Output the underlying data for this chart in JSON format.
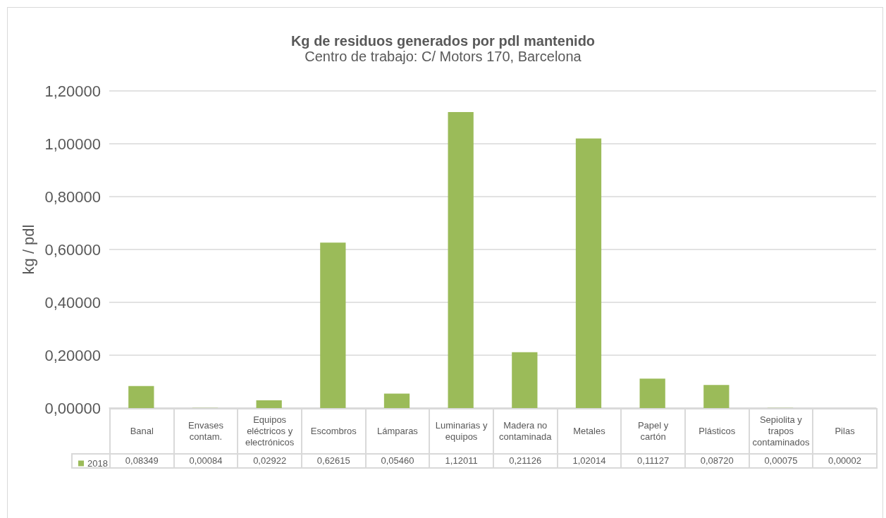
{
  "chart_data": {
    "type": "bar",
    "title": "Kg de residuos generados por pdl mantenido",
    "subtitle": "Centro de trabajo: C/ Motors 170, Barcelona",
    "ylabel": "kg / pdl",
    "categories": [
      "Banal",
      "Envases contam.",
      "Equipos eléctricos y electrónicos",
      "Escombros",
      "Lámparas",
      "Luminarias y equipos",
      "Madera no contaminada",
      "Metales",
      "Papel y cartón",
      "Plásticos",
      "Sepiolita y trapos contaminados",
      "Pilas"
    ],
    "series": [
      {
        "name": "2018",
        "color": "#9bbb59",
        "values": [
          0.08349,
          0.00084,
          0.02922,
          0.62615,
          0.0546,
          1.12011,
          0.21126,
          1.02014,
          0.11127,
          0.0872,
          0.00075,
          2e-05
        ],
        "value_labels": [
          "0,08349",
          "0,00084",
          "0,02922",
          "0,62615",
          "0,05460",
          "1,12011",
          "0,21126",
          "1,02014",
          "0,11127",
          "0,08720",
          "0,00075",
          "0,00002"
        ]
      }
    ],
    "ylim": [
      0,
      1.2
    ],
    "yticks": [
      {
        "value": 0,
        "label": "0,00000"
      },
      {
        "value": 0.2,
        "label": "0,20000"
      },
      {
        "value": 0.4,
        "label": "0,40000"
      },
      {
        "value": 0.6,
        "label": "0,60000"
      },
      {
        "value": 0.8,
        "label": "0,80000"
      },
      {
        "value": 1,
        "label": "1,00000"
      },
      {
        "value": 1.2,
        "label": "1,20000"
      }
    ],
    "grid": "y",
    "legend": "bottom"
  }
}
